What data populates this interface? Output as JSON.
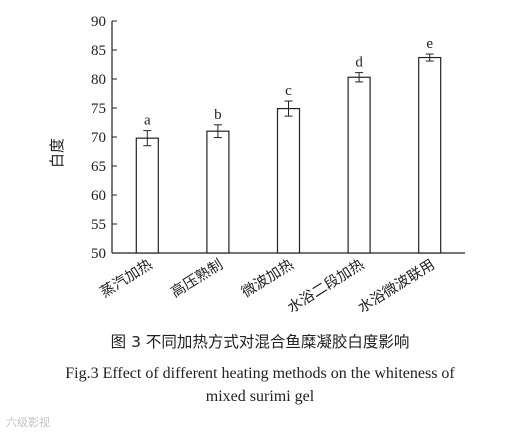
{
  "chart_data": {
    "type": "bar",
    "categories": [
      "蒸汽加热",
      "高压熟制",
      "微波加热",
      "水浴二段加热",
      "水浴微波联用"
    ],
    "values": [
      69.8,
      71.0,
      74.9,
      80.3,
      83.7
    ],
    "errors": [
      1.3,
      1.1,
      1.3,
      0.8,
      0.6
    ],
    "significance": [
      "a",
      "b",
      "c",
      "d",
      "e"
    ],
    "ylabel": "白度",
    "xlabel": "",
    "ylim": [
      50,
      90
    ],
    "yticks": [
      50,
      55,
      60,
      65,
      70,
      75,
      80,
      85,
      90
    ],
    "grid": false,
    "bar_fill": "#ffffff",
    "bar_stroke": "#222222"
  },
  "caption": {
    "cn": "图 3    不同加热方式对混合鱼糜凝胶白度影响",
    "en_line1": "Fig.3    Effect of different heating methods on the whiteness of",
    "en_line2": "mixed surimi gel"
  },
  "watermark": "六级影视"
}
